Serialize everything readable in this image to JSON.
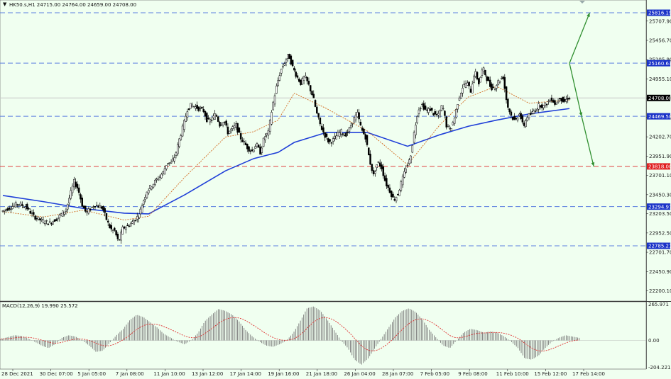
{
  "header": {
    "symbol_line": "HK50.s,H1  24715.00 24764.00 24659.00 24708.00"
  },
  "macd": {
    "label": "MACD(12,26,9) 19.990 25.572",
    "axis": [
      "265.971",
      "0.00",
      "-204.221"
    ]
  },
  "colors": {
    "background": "#f0fff0",
    "candle": "#000000",
    "ma_slow": "#1f3fd8",
    "ma_fast": "#d2691e",
    "level_blue": "#5b7fe0",
    "level_red": "#e04040",
    "arrow": "#2f8f2f"
  },
  "chart_data": {
    "type": "candlestick",
    "symbol": "HK50.s",
    "timeframe": "H1",
    "ohlc_last": {
      "open": 24715.0,
      "high": 24764.0,
      "low": 24659.0,
      "close": 24708.0
    },
    "y_ticks": [
      "25707.90",
      "25456.70",
      "25205.90",
      "24955.10",
      "24704.30",
      "24453.50",
      "24202.70",
      "23951.90",
      "23701.10",
      "23450.30",
      "23203.50",
      "22952.50",
      "22701.70",
      "22450.90",
      "22200.10"
    ],
    "x_ticks": [
      "28 Dec 2021",
      "30 Dec 07:00",
      "5 Jan 05:00",
      "7 Jan 08:00",
      "11 Jan 10:00",
      "13 Jan 12:00",
      "17 Jan 14:00",
      "19 Jan 16:00",
      "21 Jan 18:00",
      "26 Jan 04:00",
      "28 Jan 07:00",
      "7 Feb 05:00",
      "9 Feb 08:00",
      "11 Feb 10:00",
      "15 Feb 12:00",
      "17 Feb 14:00"
    ],
    "levels": [
      {
        "value": 25816.19,
        "label": "25816.19",
        "type": "resistance",
        "color": "blue"
      },
      {
        "value": 25160.63,
        "label": "25160.63",
        "type": "resistance",
        "color": "blue"
      },
      {
        "value": 24708.0,
        "label": "24708.00",
        "type": "current",
        "color": "black"
      },
      {
        "value": 24469.58,
        "label": "24469.58",
        "type": "pivot",
        "color": "blue"
      },
      {
        "value": 23818.0,
        "label": "23818.00",
        "type": "support",
        "color": "red"
      },
      {
        "value": 23294.97,
        "label": "23294.97",
        "type": "support",
        "color": "blue"
      },
      {
        "value": 22785.21,
        "label": "22785.21",
        "type": "support",
        "color": "blue"
      }
    ],
    "ylim": [
      22100,
      25900
    ],
    "price_path": [
      [
        0,
        23230
      ],
      [
        2,
        23280
      ],
      [
        4,
        23330
      ],
      [
        6,
        23300
      ],
      [
        8,
        23170
      ],
      [
        10,
        23110
      ],
      [
        12,
        23080
      ],
      [
        14,
        23150
      ],
      [
        16,
        23260
      ],
      [
        18,
        23620
      ],
      [
        19,
        23520
      ],
      [
        20,
        23320
      ],
      [
        21,
        23210
      ],
      [
        23,
        23320
      ],
      [
        25,
        23280
      ],
      [
        26,
        23130
      ],
      [
        27,
        23000
      ],
      [
        28,
        22980
      ],
      [
        29,
        22830
      ],
      [
        30,
        23010
      ],
      [
        32,
        23070
      ],
      [
        34,
        23180
      ],
      [
        35,
        23350
      ],
      [
        36,
        23500
      ],
      [
        37,
        23560
      ],
      [
        38,
        23620
      ],
      [
        39,
        23680
      ],
      [
        40,
        23740
      ],
      [
        41,
        23870
      ],
      [
        42,
        23860
      ],
      [
        43,
        23960
      ],
      [
        44,
        24170
      ],
      [
        45,
        24350
      ],
      [
        46,
        24560
      ],
      [
        47,
        24620
      ],
      [
        48,
        24590
      ],
      [
        50,
        24540
      ],
      [
        51,
        24400
      ],
      [
        52,
        24430
      ],
      [
        53,
        24500
      ],
      [
        54,
        24360
      ],
      [
        55,
        24420
      ],
      [
        56,
        24260
      ],
      [
        58,
        24350
      ],
      [
        59,
        24200
      ],
      [
        61,
        24050
      ],
      [
        62,
        24020
      ],
      [
        63,
        24110
      ],
      [
        64,
        24000
      ],
      [
        65,
        24200
      ],
      [
        66,
        24260
      ],
      [
        67,
        24600
      ],
      [
        68,
        24850
      ],
      [
        69,
        25060
      ],
      [
        70,
        25170
      ],
      [
        71,
        25270
      ],
      [
        72,
        25110
      ],
      [
        73,
        24990
      ],
      [
        74,
        24900
      ],
      [
        75,
        24990
      ],
      [
        76,
        24870
      ],
      [
        77,
        24730
      ],
      [
        78,
        24500
      ],
      [
        79,
        24330
      ],
      [
        80,
        24220
      ],
      [
        81,
        24130
      ],
      [
        82,
        24160
      ],
      [
        83,
        24230
      ],
      [
        84,
        24270
      ],
      [
        85,
        24220
      ],
      [
        86,
        24300
      ],
      [
        87,
        24430
      ],
      [
        88,
        24500
      ],
      [
        89,
        24300
      ],
      [
        90,
        24200
      ],
      [
        91,
        23900
      ],
      [
        92,
        23700
      ],
      [
        93,
        23880
      ],
      [
        94,
        23800
      ],
      [
        95,
        23600
      ],
      [
        96,
        23500
      ],
      [
        97,
        23380
      ],
      [
        98,
        23460
      ],
      [
        99,
        23630
      ],
      [
        100,
        23800
      ],
      [
        101,
        23910
      ],
      [
        102,
        24250
      ],
      [
        103,
        24560
      ],
      [
        104,
        24620
      ],
      [
        105,
        24540
      ],
      [
        106,
        24560
      ],
      [
        107,
        24490
      ],
      [
        108,
        24480
      ],
      [
        109,
        24620
      ],
      [
        110,
        24350
      ],
      [
        111,
        24300
      ],
      [
        112,
        24450
      ],
      [
        113,
        24700
      ],
      [
        114,
        24850
      ],
      [
        115,
        24910
      ],
      [
        116,
        24800
      ],
      [
        117,
        25060
      ],
      [
        118,
        24900
      ],
      [
        119,
        25100
      ],
      [
        120,
        24960
      ],
      [
        121,
        24840
      ],
      [
        122,
        24850
      ],
      [
        123,
        24940
      ],
      [
        124,
        24980
      ],
      [
        125,
        24620
      ],
      [
        126,
        24480
      ],
      [
        127,
        24400
      ],
      [
        128,
        24520
      ],
      [
        129,
        24330
      ],
      [
        130,
        24470
      ],
      [
        131,
        24500
      ],
      [
        132,
        24560
      ],
      [
        133,
        24620
      ],
      [
        134,
        24600
      ],
      [
        135,
        24650
      ],
      [
        136,
        24700
      ],
      [
        137,
        24620
      ],
      [
        138,
        24720
      ],
      [
        139,
        24650
      ],
      [
        140,
        24710
      ]
    ],
    "series": [
      {
        "name": "MA slow",
        "values": [
          [
            0,
            23440
          ],
          [
            10,
            23360
          ],
          [
            20,
            23270
          ],
          [
            30,
            23210
          ],
          [
            36,
            23200
          ],
          [
            45,
            23450
          ],
          [
            55,
            23760
          ],
          [
            62,
            23920
          ],
          [
            68,
            24000
          ],
          [
            72,
            24130
          ],
          [
            80,
            24260
          ],
          [
            90,
            24260
          ],
          [
            100,
            24080
          ],
          [
            108,
            24230
          ],
          [
            115,
            24340
          ],
          [
            122,
            24420
          ],
          [
            130,
            24500
          ],
          [
            140,
            24570
          ]
        ]
      },
      {
        "name": "MA fast",
        "values": [
          [
            0,
            23230
          ],
          [
            10,
            23160
          ],
          [
            20,
            23250
          ],
          [
            30,
            23120
          ],
          [
            36,
            23170
          ],
          [
            45,
            23680
          ],
          [
            55,
            24200
          ],
          [
            62,
            24270
          ],
          [
            68,
            24420
          ],
          [
            72,
            24770
          ],
          [
            80,
            24570
          ],
          [
            90,
            24280
          ],
          [
            100,
            23840
          ],
          [
            108,
            24360
          ],
          [
            115,
            24720
          ],
          [
            122,
            24860
          ],
          [
            130,
            24640
          ],
          [
            140,
            24680
          ]
        ]
      }
    ],
    "projection": [
      {
        "from": [
          140,
          25160
        ],
        "to": [
          145,
          25816
        ]
      },
      {
        "from": [
          140,
          25160
        ],
        "to": [
          143,
          24469
        ]
      },
      {
        "from": [
          143,
          24469
        ],
        "to": [
          146,
          23818
        ]
      }
    ],
    "macd_hist": [
      10,
      25,
      40,
      35,
      15,
      -10,
      -40,
      -60,
      -30,
      20,
      40,
      30,
      0,
      -40,
      -90,
      -80,
      -20,
      40,
      90,
      160,
      200,
      180,
      140,
      100,
      50,
      20,
      -10,
      -30,
      0,
      60,
      150,
      200,
      245,
      230,
      200,
      150,
      80,
      30,
      -10,
      -40,
      -50,
      -30,
      0,
      60,
      150,
      250,
      265,
      230,
      160,
      80,
      0,
      -60,
      -150,
      -190,
      -140,
      -60,
      20,
      100,
      180,
      230,
      250,
      220,
      160,
      80,
      20,
      -40,
      -60,
      0,
      60,
      90,
      80,
      60,
      70,
      60,
      30,
      -10,
      -60,
      -140,
      -150,
      -120,
      -60,
      -10,
      20,
      40,
      30,
      20
    ]
  }
}
